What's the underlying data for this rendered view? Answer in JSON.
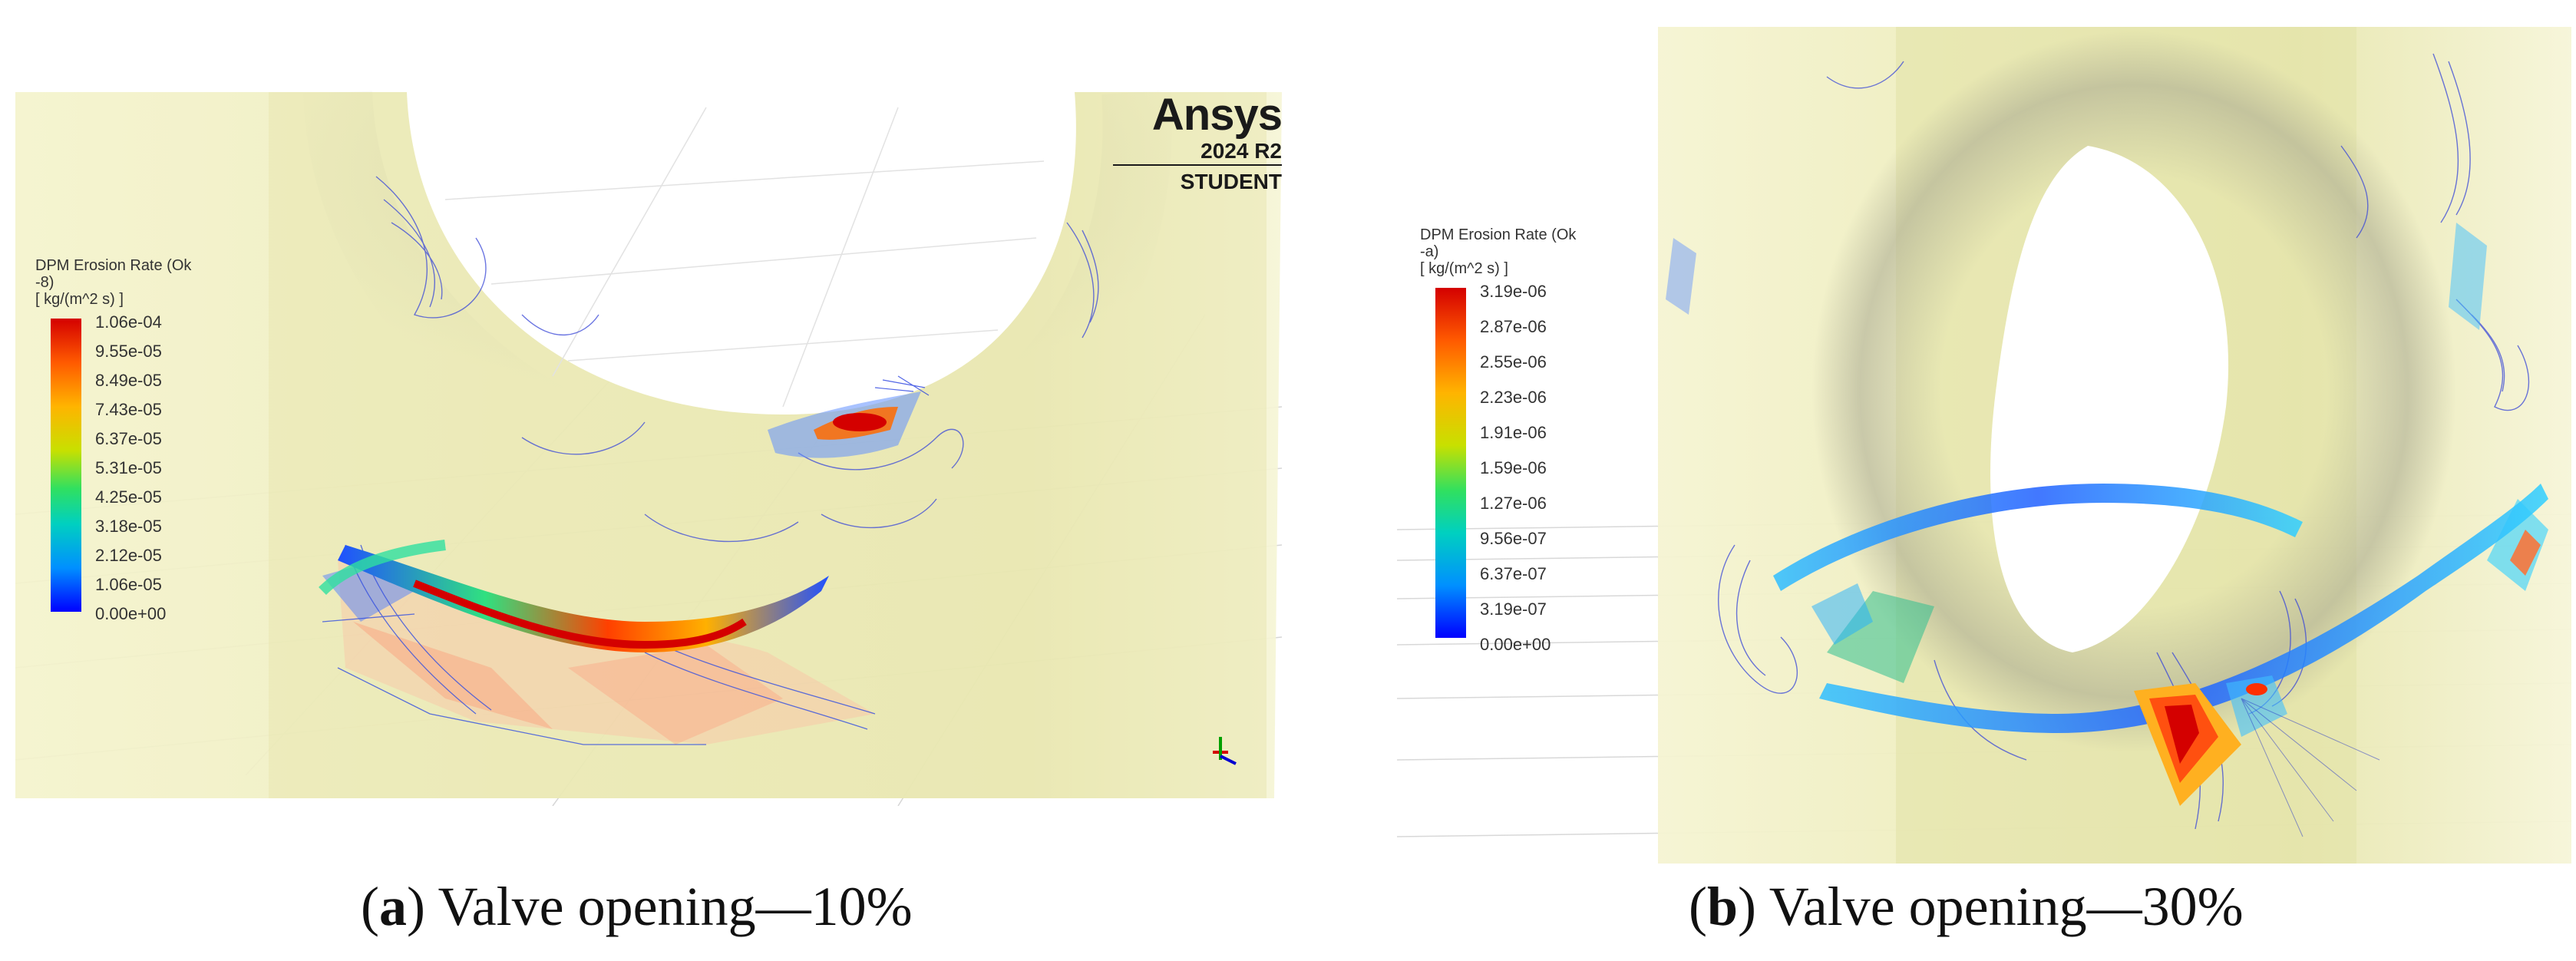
{
  "panel_a": {
    "legend": {
      "title": "DPM Erosion Rate (Ok\n-8)\n[ kg/(m^2 s) ]",
      "ticks": [
        "1.06e-04",
        "9.55e-05",
        "8.49e-05",
        "7.43e-05",
        "6.37e-05",
        "5.31e-05",
        "4.25e-05",
        "3.18e-05",
        "2.12e-05",
        "1.06e-05",
        "0.00e+00"
      ]
    },
    "logo": {
      "name": "Ansys",
      "version": "2024 R2",
      "edition": "STUDENT"
    },
    "caption": {
      "letter": "a",
      "text": " Valve opening—10%"
    }
  },
  "panel_b": {
    "legend": {
      "title": "DPM Erosion Rate (Ok\n-a)\n[ kg/(m^2 s) ]",
      "ticks": [
        "3.19e-06",
        "2.87e-06",
        "2.55e-06",
        "2.23e-06",
        "1.91e-06",
        "1.59e-06",
        "1.27e-06",
        "9.56e-07",
        "6.37e-07",
        "3.19e-07",
        "0.00e+00"
      ]
    },
    "caption": {
      "letter": "b",
      "text": " Valve opening—30%"
    }
  },
  "colors": {
    "surface": "#f1f0c2",
    "surface_dark": "#dcdb9e",
    "contour_blue": "#2a3cd8",
    "hot_red": "#d40000"
  }
}
